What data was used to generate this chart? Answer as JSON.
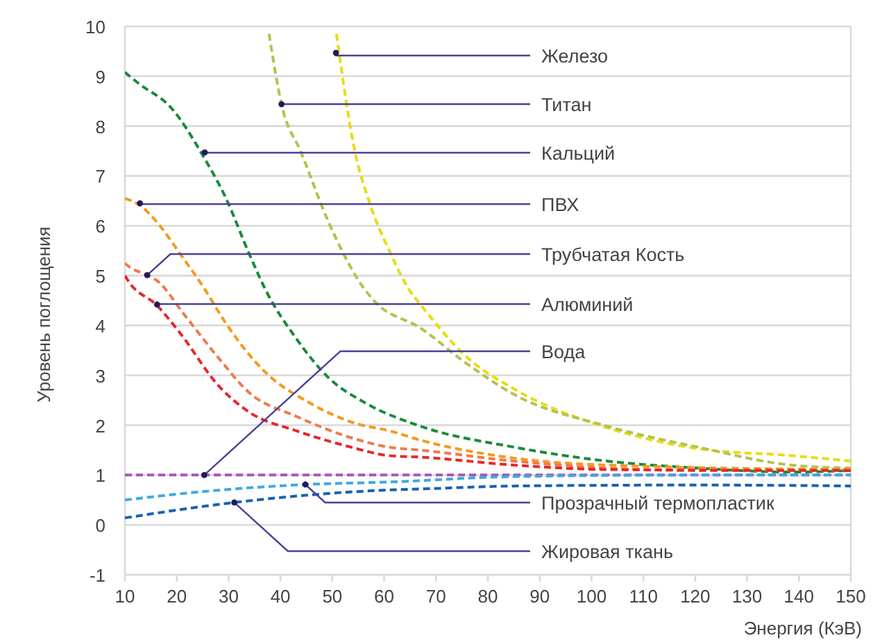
{
  "chart_data": {
    "type": "line",
    "xlabel": "Энергия (КэВ)",
    "ylabel": "Уровень поглощения",
    "xlim": [
      10,
      150
    ],
    "xticks": [
      10,
      20,
      30,
      40,
      50,
      60,
      70,
      80,
      90,
      100,
      110,
      120,
      130,
      140,
      150
    ],
    "ylim": [
      -1,
      10
    ],
    "yticks": [
      -1,
      0,
      1,
      2,
      3,
      4,
      5,
      6,
      7,
      8,
      9,
      10
    ],
    "grid": "y",
    "line_style": "dashed",
    "marker": "none",
    "series": [
      {
        "color": "#e8dc10",
        "x": [
          50.8,
          54.4,
          56.9,
          61.3,
          64.9,
          67,
          76,
          85,
          103,
          120.5,
          138.5,
          150
        ],
        "values": [
          9.85,
          7.47,
          6.55,
          5.43,
          4.7,
          4.42,
          3.36,
          2.73,
          1.95,
          1.53,
          1.39,
          1.28
        ]
      },
      {
        "color": "#b3c24e",
        "x": [
          37.8,
          40.2,
          44,
          49.3,
          56,
          58.2,
          67,
          76,
          85,
          103,
          120.5,
          138.5,
          150
        ],
        "values": [
          9.85,
          8.44,
          7.47,
          6.07,
          4.76,
          4.48,
          3.95,
          3.23,
          2.62,
          1.98,
          1.56,
          1.2,
          1.14
        ]
      },
      {
        "color": "#1a8a3c",
        "x": [
          10,
          12.7,
          18.8,
          25.2,
          29.5,
          34,
          37.3,
          42.9,
          49.3,
          56.3,
          67,
          85,
          103,
          120.5,
          138.5,
          150
        ],
        "values": [
          9.08,
          8.85,
          8.38,
          7.38,
          6.55,
          5.43,
          4.68,
          3.76,
          2.95,
          2.45,
          1.98,
          1.56,
          1.28,
          1.14,
          1.06,
          1.09
        ]
      },
      {
        "color": "#f59a1b",
        "x": [
          10,
          12.9,
          16.2,
          20.7,
          25.2,
          29.5,
          36.8,
          45.6,
          54.7,
          60.9,
          67,
          85,
          103,
          150
        ],
        "values": [
          6.55,
          6.41,
          6.07,
          5.43,
          4.76,
          4.04,
          3.09,
          2.45,
          2.03,
          1.89,
          1.7,
          1.34,
          1.2,
          1.11
        ]
      },
      {
        "color": "#ef7b4a",
        "x": [
          10,
          10.8,
          14.3,
          16.2,
          21.5,
          27.9,
          34,
          43,
          53.6,
          60.9,
          67,
          85,
          103,
          120.5,
          150
        ],
        "values": [
          5.25,
          5.18,
          5.01,
          4.9,
          4.21,
          3.37,
          2.65,
          2.18,
          1.75,
          1.56,
          1.5,
          1.28,
          1.14,
          1.09,
          1.11
        ]
      },
      {
        "color": "#e8262a",
        "x": [
          10,
          10.8,
          16.2,
          20.7,
          27.9,
          34,
          43,
          53.6,
          60.9,
          67,
          85,
          103,
          150
        ],
        "values": [
          5.0,
          4.87,
          4.4,
          3.84,
          2.81,
          2.26,
          1.89,
          1.56,
          1.39,
          1.36,
          1.2,
          1.11,
          1.09
        ]
      },
      {
        "color": "#a855b5",
        "x": [
          10,
          150
        ],
        "values": [
          1,
          1
        ]
      },
      {
        "color": "#3fa9e0",
        "x": [
          10,
          25.2,
          44.8,
          60.9,
          85,
          120.5,
          150
        ],
        "values": [
          0.5,
          0.67,
          0.81,
          0.86,
          0.97,
          1.0,
          1.0
        ]
      },
      {
        "color": "#1763b0",
        "x": [
          10,
          31.1,
          60.9,
          67,
          85,
          120.5,
          150
        ],
        "values": [
          0.14,
          0.45,
          0.7,
          0.72,
          0.78,
          0.8,
          0.78
        ]
      }
    ],
    "annotations": [
      {
        "text": "Железо",
        "x": 50.7,
        "y": 9.47
      },
      {
        "text": "Титан",
        "x": 40.2,
        "y": 8.44
      },
      {
        "text": "Кальций",
        "x": 25.4,
        "y": 7.47
      },
      {
        "text": "ПВХ",
        "x": 12.9,
        "y": 6.45
      },
      {
        "text": "Трубчатая Кость",
        "x": 14.3,
        "y": 5.01
      },
      {
        "text": "Алюминий",
        "x": 16.2,
        "y": 4.42
      },
      {
        "text": "Вода",
        "x": 25.3,
        "y": 1
      },
      {
        "text": "Прозрачный термопластик",
        "x": 44.8,
        "y": 0.81
      },
      {
        "text": "Жировая ткань",
        "x": 31.1,
        "y": 0.45
      }
    ]
  }
}
